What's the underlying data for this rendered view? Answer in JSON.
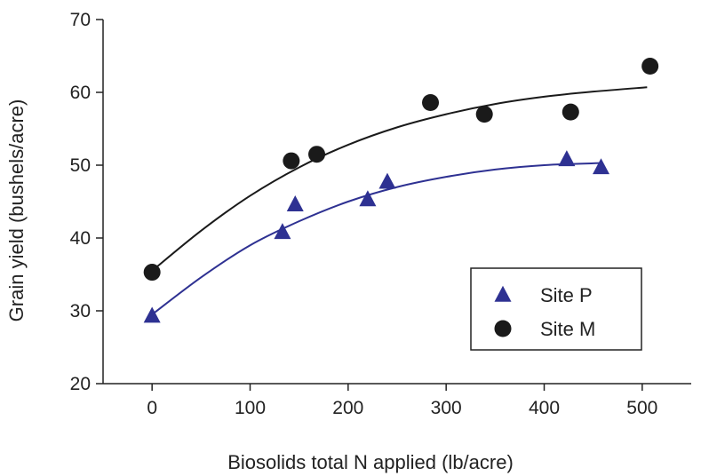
{
  "chart_data": {
    "type": "scatter",
    "title": "",
    "xlabel": "Biosolids total N applied (lb/acre)",
    "ylabel": "Grain yield (bushels/acre)",
    "xlim": [
      -50,
      550
    ],
    "ylim": [
      20,
      70
    ],
    "x_ticks": [
      0,
      100,
      200,
      300,
      400,
      500
    ],
    "y_ticks": [
      20,
      30,
      40,
      50,
      60,
      70
    ],
    "x_tick_labels": [
      "0",
      "100",
      "200",
      "300",
      "400",
      "500"
    ],
    "y_tick_labels": [
      "20",
      "30",
      "40",
      "50",
      "60",
      "70"
    ],
    "grid": false,
    "legend_position": "lower-right",
    "series": [
      {
        "name": "Site P",
        "marker": "triangle",
        "color": "#2E3192",
        "curve_color": "#2E3192",
        "points": [
          [
            0,
            29.3
          ],
          [
            133,
            40.8
          ],
          [
            146,
            44.6
          ],
          [
            220,
            45.3
          ],
          [
            240,
            47.7
          ],
          [
            423,
            50.8
          ],
          [
            458,
            49.7
          ]
        ],
        "fit_curve": [
          [
            0,
            29.5
          ],
          [
            50,
            34.6
          ],
          [
            100,
            39.0
          ],
          [
            150,
            42.3
          ],
          [
            200,
            45.0
          ],
          [
            250,
            47.0
          ],
          [
            300,
            48.4
          ],
          [
            350,
            49.4
          ],
          [
            400,
            50.0
          ],
          [
            460,
            50.3
          ]
        ]
      },
      {
        "name": "Site M",
        "marker": "circle",
        "color": "#1a1a1a",
        "curve_color": "#1a1a1a",
        "points": [
          [
            0,
            35.3
          ],
          [
            142,
            50.6
          ],
          [
            168,
            51.5
          ],
          [
            284,
            58.6
          ],
          [
            339,
            57.0
          ],
          [
            427,
            57.3
          ],
          [
            508,
            63.6
          ]
        ],
        "fit_curve": [
          [
            0,
            35.5
          ],
          [
            50,
            41.0
          ],
          [
            100,
            45.8
          ],
          [
            150,
            49.7
          ],
          [
            200,
            52.8
          ],
          [
            250,
            55.2
          ],
          [
            300,
            57.0
          ],
          [
            350,
            58.4
          ],
          [
            400,
            59.4
          ],
          [
            450,
            60.1
          ],
          [
            505,
            60.7
          ]
        ]
      }
    ]
  }
}
